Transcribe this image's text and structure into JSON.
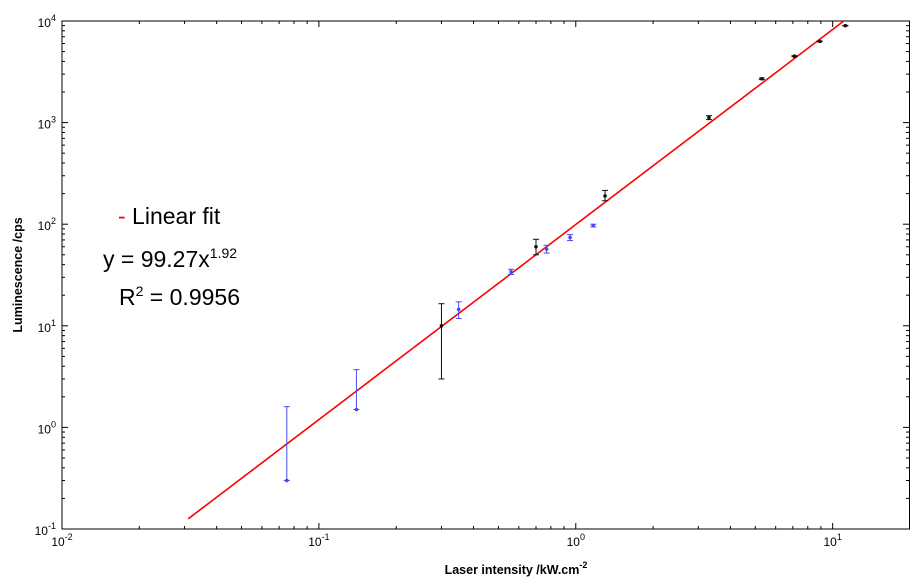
{
  "chart_data": {
    "type": "scatter",
    "xscale": "log",
    "yscale": "log",
    "xlim": [
      0.01,
      20
    ],
    "ylim": [
      0.1,
      10000
    ],
    "xlabel": "Laser intensity /kW.cm",
    "xlabel_sup": "-2",
    "ylabel": "Luminescence /cps",
    "grid": false,
    "x_ticks": [
      {
        "base": "10",
        "exp": "-2",
        "value": 0.01
      },
      {
        "base": "10",
        "exp": "-1",
        "value": 0.1
      },
      {
        "base": "10",
        "exp": "0",
        "value": 1
      },
      {
        "base": "10",
        "exp": "1",
        "value": 10
      }
    ],
    "y_ticks": [
      {
        "base": "10",
        "exp": "-1",
        "value": 0.1
      },
      {
        "base": "10",
        "exp": "0",
        "value": 1
      },
      {
        "base": "10",
        "exp": "1",
        "value": 10
      },
      {
        "base": "10",
        "exp": "2",
        "value": 100
      },
      {
        "base": "10",
        "exp": "3",
        "value": 1000
      },
      {
        "base": "10",
        "exp": "4",
        "value": 10000
      }
    ],
    "series": [
      {
        "color": "#4a4af0",
        "points": [
          {
            "x": 0.075,
            "y": 0.3,
            "err_low": 0.3,
            "err_high": 1.6
          },
          {
            "x": 0.14,
            "y": 1.5,
            "err_low": 1.5,
            "err_high": 3.7
          },
          {
            "x": 0.35,
            "y": 14.5,
            "err_low": 11.8,
            "err_high": 17.2
          },
          {
            "x": 0.56,
            "y": 34,
            "err_low": 32,
            "err_high": 36
          },
          {
            "x": 0.77,
            "y": 57,
            "err_low": 52,
            "err_high": 62
          },
          {
            "x": 0.95,
            "y": 74,
            "err_low": 69,
            "err_high": 79
          },
          {
            "x": 1.17,
            "y": 97,
            "err_low": 94,
            "err_high": 100
          }
        ]
      },
      {
        "color": "#111111",
        "points": [
          {
            "x": 0.3,
            "y": 10,
            "err_low": 3.0,
            "err_high": 16.5
          },
          {
            "x": 0.7,
            "y": 60,
            "err_low": 50,
            "err_high": 71
          },
          {
            "x": 1.3,
            "y": 190,
            "err_low": 170,
            "err_high": 215
          },
          {
            "x": 3.3,
            "y": 1120,
            "err_low": 1070,
            "err_high": 1170
          },
          {
            "x": 5.3,
            "y": 2700,
            "err_low": 2650,
            "err_high": 2750
          },
          {
            "x": 7.1,
            "y": 4500,
            "err_low": 4450,
            "err_high": 4550
          },
          {
            "x": 8.9,
            "y": 6300,
            "err_low": 6250,
            "err_high": 6350
          },
          {
            "x": 11.2,
            "y": 9000,
            "err_low": 8950,
            "err_high": 9050
          }
        ]
      }
    ],
    "fit": {
      "color": "#ff0000",
      "coef": 99.27,
      "exponent": 1.92,
      "x_range": [
        0.031,
        11
      ]
    },
    "annotation": {
      "dash": "-",
      "fit_label": " Linear fit",
      "equation_prefix": "y = 99.27x",
      "equation_exp": "1.92",
      "r2_prefix": "R",
      "r2_sup": "2",
      "r2_value": " = 0.9956"
    }
  }
}
